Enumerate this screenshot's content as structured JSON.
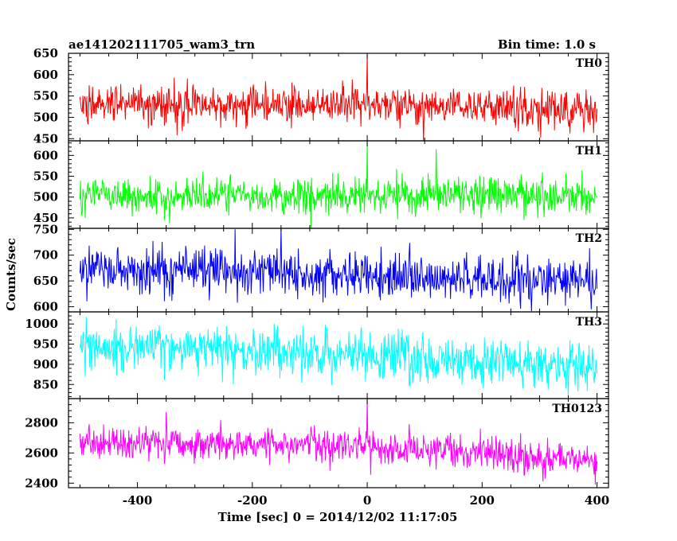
{
  "chart_data": {
    "type": "line",
    "title_left": "ae141202111705_wam3_trn",
    "title_right": "Bin time: 1.0 s",
    "xlabel": "Time [sec] 0 = 2014/12/02 11:17:05",
    "ylabel": "Counts/sec",
    "xlim": [
      -520,
      420
    ],
    "xticks": [
      "-400",
      "-200",
      "0",
      "200",
      "400"
    ],
    "x_data_range": [
      -500,
      400
    ],
    "grid": false,
    "panels": [
      {
        "name": "TH0",
        "color": "#ff0000",
        "ylim": [
          445,
          650
        ],
        "yticks": [
          "450",
          "500",
          "550",
          "600",
          "650"
        ],
        "mean": 530,
        "std": 22,
        "trend": [
          [
            -500,
            533
          ],
          [
            -200,
            531
          ],
          [
            0,
            530
          ],
          [
            200,
            525
          ],
          [
            400,
            515
          ]
        ],
        "spikes": [
          [
            0,
            650
          ]
        ]
      },
      {
        "name": "TH1",
        "color": "#00ff00",
        "ylim": [
          425,
          635
        ],
        "yticks": [
          "450",
          "500",
          "550",
          "600"
        ],
        "mean": 505,
        "std": 22,
        "trend": [
          [
            -500,
            500
          ],
          [
            -200,
            504
          ],
          [
            0,
            505
          ],
          [
            200,
            505
          ],
          [
            400,
            503
          ]
        ],
        "spikes": [
          [
            0,
            638
          ],
          [
            120,
            615
          ]
        ]
      },
      {
        "name": "TH2",
        "color": "#0000ff",
        "ylim": [
          590,
          752
        ],
        "yticks": [
          "600",
          "650",
          "700",
          "750"
        ],
        "mean": 665,
        "std": 22,
        "trend": [
          [
            -500,
            672
          ],
          [
            -200,
            668
          ],
          [
            0,
            662
          ],
          [
            200,
            655
          ],
          [
            400,
            645
          ]
        ],
        "spikes": [
          [
            -150,
            752
          ],
          [
            -230,
            750
          ]
        ]
      },
      {
        "name": "TH3",
        "color": "#00ffff",
        "ylim": [
          815,
          1030
        ],
        "yticks": [
          "850",
          "900",
          "950",
          "1000"
        ],
        "mean": 930,
        "std": 30,
        "trend": [
          [
            -500,
            945
          ],
          [
            -200,
            935
          ],
          [
            0,
            925
          ],
          [
            200,
            905
          ],
          [
            400,
            890
          ]
        ],
        "spikes": []
      },
      {
        "name": "TH0123",
        "color": "#ff00ff",
        "ylim": [
          2370,
          2960
        ],
        "yticks": [
          "2400",
          "2600",
          "2800"
        ],
        "mean": 2640,
        "std": 55,
        "trend": [
          [
            -500,
            2665
          ],
          [
            -200,
            2660
          ],
          [
            0,
            2640
          ],
          [
            200,
            2600
          ],
          [
            400,
            2545
          ]
        ],
        "spikes": [
          [
            0,
            2960
          ],
          [
            -350,
            2870
          ]
        ]
      }
    ]
  }
}
